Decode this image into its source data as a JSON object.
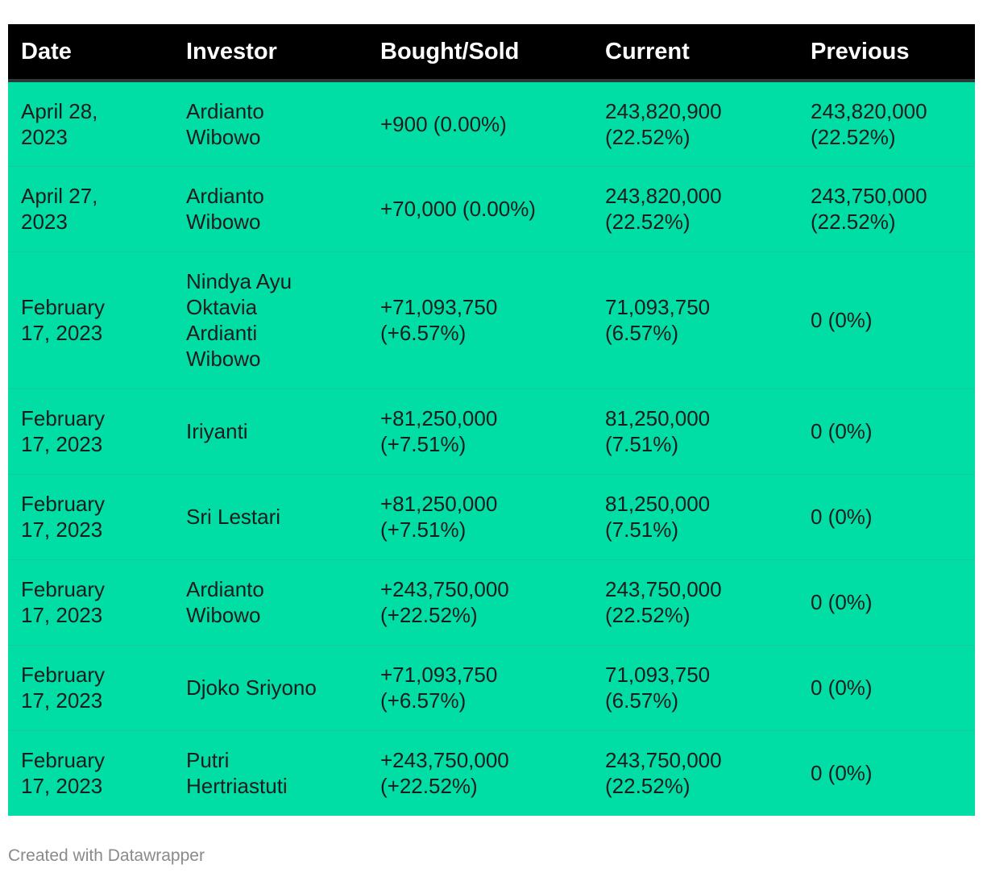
{
  "table": {
    "columns": [
      "Date",
      "Investor",
      "Bought/Sold",
      "Current",
      "Previous"
    ],
    "rows": [
      {
        "date": "April 28,\n2023",
        "investor": "Ardianto\nWibowo",
        "bought_sold": "+900 (0.00%)",
        "current": "243,820,900\n(22.52%)",
        "previous": "243,820,000\n(22.52%)"
      },
      {
        "date": "April 27,\n2023",
        "investor": "Ardianto\nWibowo",
        "bought_sold": "+70,000 (0.00%)",
        "current": "243,820,000\n(22.52%)",
        "previous": "243,750,000\n(22.52%)"
      },
      {
        "date": "February\n17, 2023",
        "investor": "Nindya Ayu\nOktavia\nArdianti\nWibowo",
        "bought_sold": "+71,093,750\n(+6.57%)",
        "current": "71,093,750\n(6.57%)",
        "previous": "0 (0%)"
      },
      {
        "date": "February\n17, 2023",
        "investor": "Iriyanti",
        "bought_sold": "+81,250,000\n(+7.51%)",
        "current": "81,250,000\n(7.51%)",
        "previous": "0 (0%)"
      },
      {
        "date": "February\n17, 2023",
        "investor": "Sri Lestari",
        "bought_sold": "+81,250,000\n(+7.51%)",
        "current": "81,250,000\n(7.51%)",
        "previous": "0 (0%)"
      },
      {
        "date": "February\n17, 2023",
        "investor": "Ardianto\nWibowo",
        "bought_sold": "+243,750,000\n(+22.52%)",
        "current": "243,750,000\n(22.52%)",
        "previous": "0 (0%)"
      },
      {
        "date": "February\n17, 2023",
        "investor": "Djoko Sriyono",
        "bought_sold": "+71,093,750\n(+6.57%)",
        "current": "71,093,750\n(6.57%)",
        "previous": "0 (0%)"
      },
      {
        "date": "February\n17, 2023",
        "investor": "Putri\nHertriastuti",
        "bought_sold": "+243,750,000\n(+22.52%)",
        "current": "243,750,000\n(22.52%)",
        "previous": "0 (0%)"
      }
    ]
  },
  "footer": {
    "credit": "Created with Datawrapper"
  },
  "colors": {
    "header_background": "#000000",
    "header_text": "#ffffff",
    "row_background": "#00dea6",
    "footer_text": "#8a8a8a"
  }
}
